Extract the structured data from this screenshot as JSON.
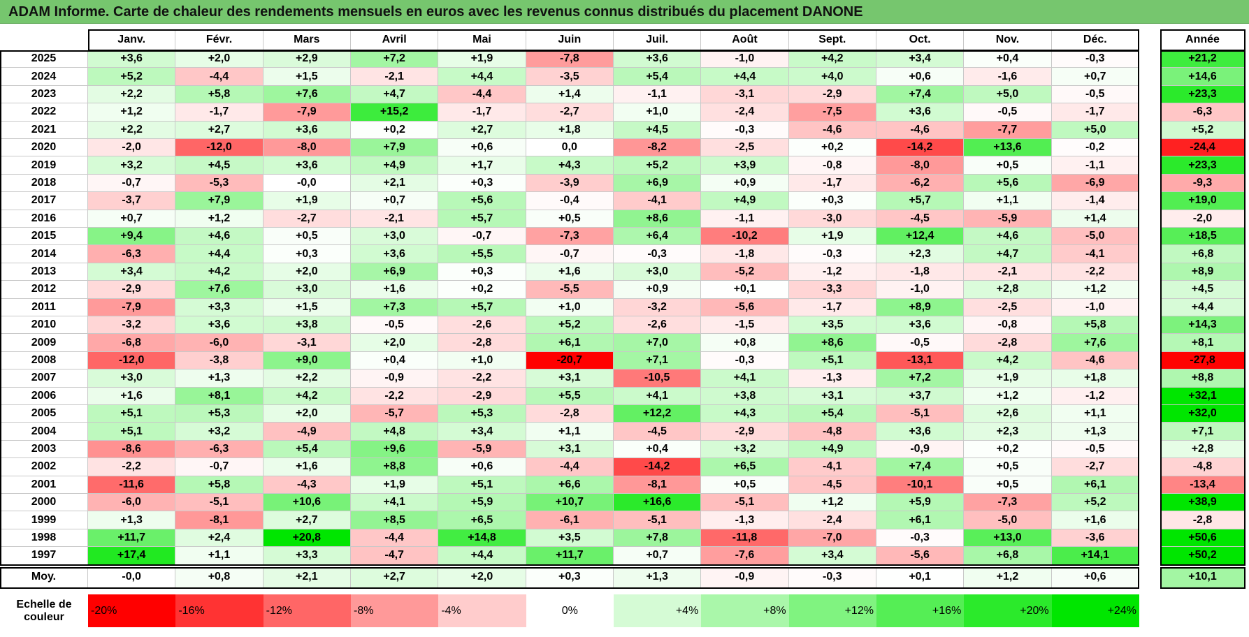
{
  "title": "ADAM Informe. Carte de chaleur des rendements mensuels en euros avec les revenus connus distribués du placement DANONE",
  "chart_data": {
    "type": "heatmap",
    "months": [
      "Janv.",
      "Févr.",
      "Mars",
      "Avril",
      "Mai",
      "Juin",
      "Juil.",
      "Août",
      "Sept.",
      "Oct.",
      "Nov.",
      "Déc."
    ],
    "year_header": "Année",
    "rows": [
      {
        "year": "2025",
        "values": [
          "+3,6",
          "+2,0",
          "+2,9",
          "+7,2",
          "+1,9",
          "-7,8",
          "+3,6",
          "-1,0",
          "+4,2",
          "+3,4",
          "+0,4",
          "-0,3"
        ],
        "annual": "+21,2"
      },
      {
        "year": "2024",
        "values": [
          "+5,2",
          "-4,4",
          "+1,5",
          "-2,1",
          "+4,4",
          "-3,5",
          "+5,4",
          "+4,4",
          "+4,0",
          "+0,6",
          "-1,6",
          "+0,7"
        ],
        "annual": "+14,6"
      },
      {
        "year": "2023",
        "values": [
          "+2,2",
          "+5,8",
          "+7,6",
          "+4,7",
          "-4,4",
          "+1,4",
          "-1,1",
          "-3,1",
          "-2,9",
          "+7,4",
          "+5,0",
          "-0,5"
        ],
        "annual": "+23,3"
      },
      {
        "year": "2022",
        "values": [
          "+1,2",
          "-1,7",
          "-7,9",
          "+15,2",
          "-1,7",
          "-2,7",
          "+1,0",
          "-2,4",
          "-7,5",
          "+3,6",
          "-0,5",
          "-1,7"
        ],
        "annual": "-6,3"
      },
      {
        "year": "2021",
        "values": [
          "+2,2",
          "+2,7",
          "+3,6",
          "+0,2",
          "+2,7",
          "+1,8",
          "+4,5",
          "-0,3",
          "-4,6",
          "-4,6",
          "-7,7",
          "+5,0"
        ],
        "annual": "+5,2"
      },
      {
        "year": "2020",
        "values": [
          "-2,0",
          "-12,0",
          "-8,0",
          "+7,9",
          "+0,6",
          "0,0",
          "-8,2",
          "-2,5",
          "+0,2",
          "-14,2",
          "+13,6",
          "-0,2"
        ],
        "annual": "-24,4"
      },
      {
        "year": "2019",
        "values": [
          "+3,2",
          "+4,5",
          "+3,6",
          "+4,9",
          "+1,7",
          "+4,3",
          "+5,2",
          "+3,9",
          "-0,8",
          "-8,0",
          "+0,5",
          "-1,1"
        ],
        "annual": "+23,3"
      },
      {
        "year": "2018",
        "values": [
          "-0,7",
          "-5,3",
          "-0,0",
          "+2,1",
          "+0,3",
          "-3,9",
          "+6,9",
          "+0,9",
          "-1,7",
          "-6,2",
          "+5,6",
          "-6,9"
        ],
        "annual": "-9,3"
      },
      {
        "year": "2017",
        "values": [
          "-3,7",
          "+7,9",
          "+1,9",
          "+0,7",
          "+5,6",
          "-0,4",
          "-4,1",
          "+4,9",
          "+0,3",
          "+5,7",
          "+1,1",
          "-1,4"
        ],
        "annual": "+19,0"
      },
      {
        "year": "2016",
        "values": [
          "+0,7",
          "+1,2",
          "-2,7",
          "-2,1",
          "+5,7",
          "+0,5",
          "+8,6",
          "-1,1",
          "-3,0",
          "-4,5",
          "-5,9",
          "+1,4"
        ],
        "annual": "-2,0"
      },
      {
        "year": "2015",
        "values": [
          "+9,4",
          "+4,6",
          "+0,5",
          "+3,0",
          "-0,7",
          "-7,3",
          "+6,4",
          "-10,2",
          "+1,9",
          "+12,4",
          "+4,6",
          "-5,0"
        ],
        "annual": "+18,5"
      },
      {
        "year": "2014",
        "values": [
          "-6,3",
          "+4,4",
          "+0,3",
          "+3,6",
          "+5,5",
          "-0,7",
          "-0,3",
          "-1,8",
          "-0,3",
          "+2,3",
          "+4,7",
          "-4,1"
        ],
        "annual": "+6,8"
      },
      {
        "year": "2013",
        "values": [
          "+3,4",
          "+4,2",
          "+2,0",
          "+6,9",
          "+0,3",
          "+1,6",
          "+3,0",
          "-5,2",
          "-1,2",
          "-1,8",
          "-2,1",
          "-2,2"
        ],
        "annual": "+8,9"
      },
      {
        "year": "2012",
        "values": [
          "-2,9",
          "+7,6",
          "+3,0",
          "+1,6",
          "+0,2",
          "-5,5",
          "+0,9",
          "+0,1",
          "-3,3",
          "-1,0",
          "+2,8",
          "+1,2"
        ],
        "annual": "+4,5"
      },
      {
        "year": "2011",
        "values": [
          "-7,9",
          "+3,3",
          "+1,5",
          "+7,3",
          "+5,7",
          "+1,0",
          "-3,2",
          "-5,6",
          "-1,7",
          "+8,9",
          "-2,5",
          "-1,0"
        ],
        "annual": "+4,4"
      },
      {
        "year": "2010",
        "values": [
          "-3,2",
          "+3,6",
          "+3,8",
          "-0,5",
          "-2,6",
          "+5,2",
          "-2,6",
          "-1,5",
          "+3,5",
          "+3,6",
          "-0,8",
          "+5,8"
        ],
        "annual": "+14,3"
      },
      {
        "year": "2009",
        "values": [
          "-6,8",
          "-6,0",
          "-3,1",
          "+2,0",
          "-2,8",
          "+6,1",
          "+7,0",
          "+0,8",
          "+8,6",
          "-0,5",
          "-2,8",
          "+7,6"
        ],
        "annual": "+8,1"
      },
      {
        "year": "2008",
        "values": [
          "-12,0",
          "-3,8",
          "+9,0",
          "+0,4",
          "+1,0",
          "-20,7",
          "+7,1",
          "-0,3",
          "+5,1",
          "-13,1",
          "+4,2",
          "-4,6"
        ],
        "annual": "-27,8"
      },
      {
        "year": "2007",
        "values": [
          "+3,0",
          "+1,3",
          "+2,2",
          "-0,9",
          "-2,2",
          "+3,1",
          "-10,5",
          "+4,1",
          "-1,3",
          "+7,2",
          "+1,9",
          "+1,8"
        ],
        "annual": "+8,8"
      },
      {
        "year": "2006",
        "values": [
          "+1,6",
          "+8,1",
          "+4,2",
          "-2,2",
          "-2,9",
          "+5,5",
          "+4,1",
          "+3,8",
          "+3,1",
          "+3,7",
          "+1,2",
          "-1,2"
        ],
        "annual": "+32,1"
      },
      {
        "year": "2005",
        "values": [
          "+5,1",
          "+5,3",
          "+2,0",
          "-5,7",
          "+5,3",
          "-2,8",
          "+12,2",
          "+4,3",
          "+5,4",
          "-5,1",
          "+2,6",
          "+1,1"
        ],
        "annual": "+32,0"
      },
      {
        "year": "2004",
        "values": [
          "+5,1",
          "+3,2",
          "-4,9",
          "+4,8",
          "+3,4",
          "+1,1",
          "-4,5",
          "-2,9",
          "-4,8",
          "+3,6",
          "+2,3",
          "+1,3"
        ],
        "annual": "+7,1"
      },
      {
        "year": "2003",
        "values": [
          "-8,6",
          "-6,3",
          "+5,4",
          "+9,6",
          "-5,9",
          "+3,1",
          "+0,4",
          "+3,2",
          "+4,9",
          "-0,9",
          "+0,2",
          "-0,5"
        ],
        "annual": "+2,8"
      },
      {
        "year": "2002",
        "values": [
          "-2,2",
          "-0,7",
          "+1,6",
          "+8,8",
          "+0,6",
          "-4,4",
          "-14,2",
          "+6,5",
          "-4,1",
          "+7,4",
          "+0,5",
          "-2,7"
        ],
        "annual": "-4,8"
      },
      {
        "year": "2001",
        "values": [
          "-11,6",
          "+5,8",
          "-4,3",
          "+1,9",
          "+5,1",
          "+6,6",
          "-8,1",
          "+0,5",
          "-4,5",
          "-10,1",
          "+0,5",
          "+6,1"
        ],
        "annual": "-13,4"
      },
      {
        "year": "2000",
        "values": [
          "-6,0",
          "-5,1",
          "+10,6",
          "+4,1",
          "+5,9",
          "+10,7",
          "+16,6",
          "-5,1",
          "+1,2",
          "+5,9",
          "-7,3",
          "+5,2"
        ],
        "annual": "+38,9"
      },
      {
        "year": "1999",
        "values": [
          "+1,3",
          "-8,1",
          "+2,7",
          "+8,5",
          "+6,5",
          "-6,1",
          "-5,1",
          "-1,3",
          "-2,4",
          "+6,1",
          "-5,0",
          "+1,6"
        ],
        "annual": "-2,8"
      },
      {
        "year": "1998",
        "values": [
          "+11,7",
          "+2,4",
          "+20,8",
          "-4,4",
          "+14,8",
          "+3,5",
          "+7,8",
          "-11,8",
          "-7,0",
          "-0,3",
          "+13,0",
          "-3,6"
        ],
        "annual": "+50,6"
      },
      {
        "year": "1997",
        "values": [
          "+17,4",
          "+1,1",
          "+3,3",
          "-4,7",
          "+4,4",
          "+11,7",
          "+0,7",
          "-7,6",
          "+3,4",
          "-5,6",
          "+6,8",
          "+14,1"
        ],
        "annual": "+50,2"
      }
    ],
    "average": {
      "label": "Moy.",
      "values": [
        "-0,0",
        "+0,8",
        "+2,1",
        "+2,7",
        "+2,0",
        "+0,3",
        "+1,3",
        "-0,9",
        "-0,3",
        "+0,1",
        "+1,2",
        "+0,6"
      ],
      "annual": "+10,1"
    },
    "scale": {
      "label_line1": "Echelle de",
      "label_line2": "couleur",
      "stops": [
        {
          "label": "-20%",
          "value": -20
        },
        {
          "label": "-16%",
          "value": -16
        },
        {
          "label": "-12%",
          "value": -12
        },
        {
          "label": "-8%",
          "value": -8
        },
        {
          "label": "-4%",
          "value": -4
        },
        {
          "label": "0%",
          "value": 0
        },
        {
          "label": "+4%",
          "value": 4
        },
        {
          "label": "+8%",
          "value": 8
        },
        {
          "label": "+12%",
          "value": 12
        },
        {
          "label": "+16%",
          "value": 16
        },
        {
          "label": "+20%",
          "value": 20
        },
        {
          "label": "+24%",
          "value": 24
        }
      ]
    },
    "colors": {
      "negative_max": "#ff0000",
      "neutral": "#ffffff",
      "positive_max": "#00e600"
    }
  }
}
